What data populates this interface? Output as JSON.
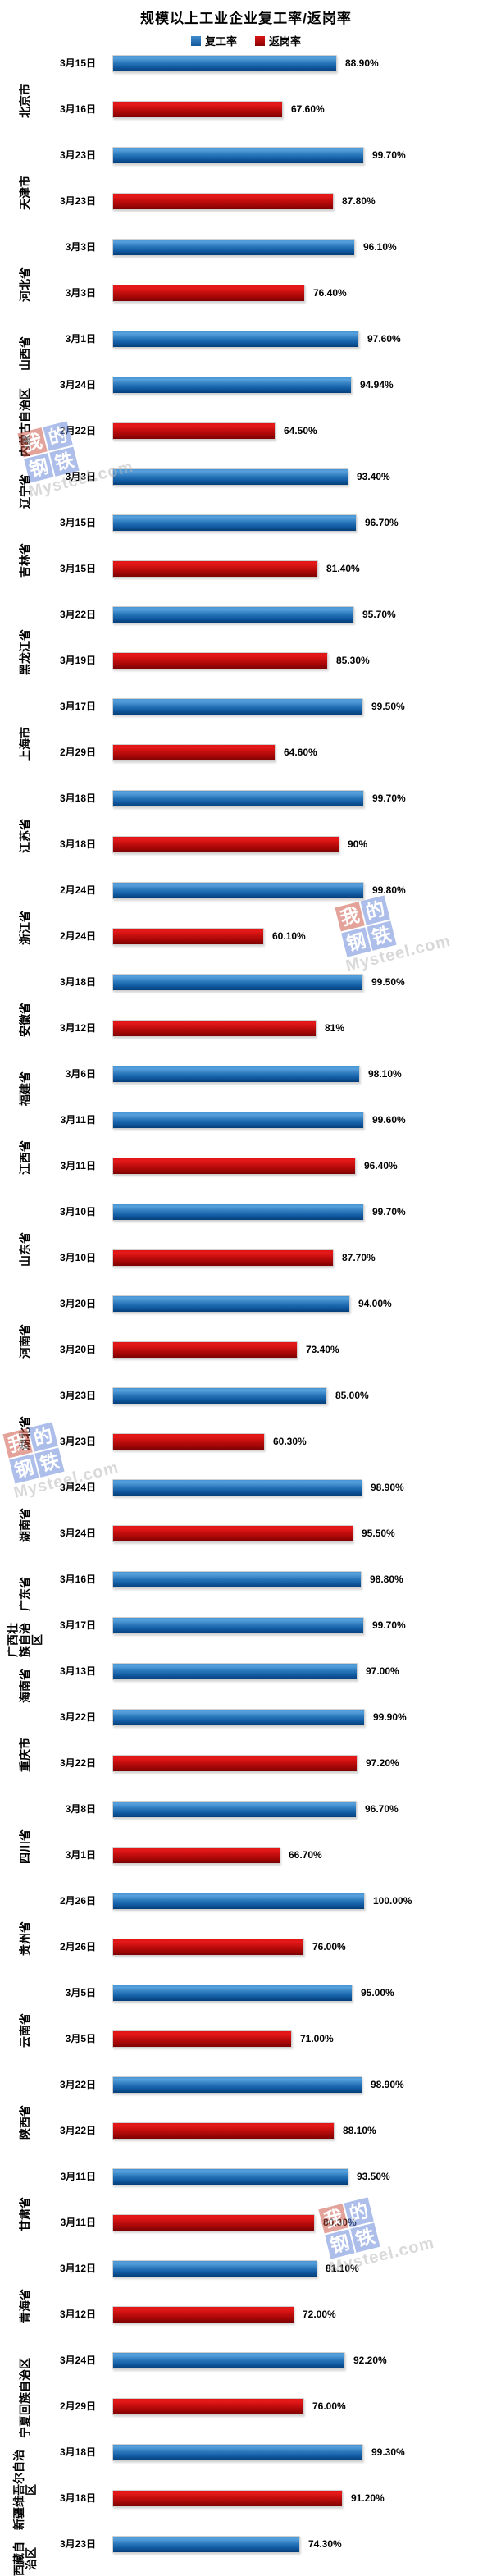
{
  "title": "规模以上工业企业复工率/返岗率",
  "legend": [
    {
      "label": "复工率",
      "color": "#1f6fb5"
    },
    {
      "label": "返岗率",
      "color": "#c00000"
    }
  ],
  "watermark": {
    "squares": [
      "我",
      "的",
      "钢",
      "铁"
    ],
    "text": "Mysteel.com"
  },
  "chart_data": {
    "type": "bar",
    "orientation": "horizontal",
    "unit": "%",
    "xlim": [
      0,
      100
    ],
    "series_names": [
      "复工率",
      "返岗率"
    ],
    "legend_position": "top-center",
    "grid": false,
    "groups": [
      {
        "province": "北京市",
        "bars": [
          {
            "series": "复工率",
            "date": "3月15日",
            "value": 88.9,
            "label": "88.90%"
          },
          {
            "series": "返岗率",
            "date": "3月16日",
            "value": 67.6,
            "label": "67.60%"
          }
        ]
      },
      {
        "province": "天津市",
        "bars": [
          {
            "series": "复工率",
            "date": "3月23日",
            "value": 99.7,
            "label": "99.70%"
          },
          {
            "series": "返岗率",
            "date": "3月23日",
            "value": 87.8,
            "label": "87.80%"
          }
        ]
      },
      {
        "province": "河北省",
        "bars": [
          {
            "series": "复工率",
            "date": "3月3日",
            "value": 96.1,
            "label": "96.10%"
          },
          {
            "series": "返岗率",
            "date": "3月3日",
            "value": 76.4,
            "label": "76.40%"
          }
        ]
      },
      {
        "province": "山西省",
        "bars": [
          {
            "series": "复工率",
            "date": "3月1日",
            "value": 97.6,
            "label": "97.60%"
          }
        ]
      },
      {
        "province": "内蒙古自治区",
        "bars": [
          {
            "series": "复工率",
            "date": "3月24日",
            "value": 94.94,
            "label": "94.94%"
          },
          {
            "series": "返岗率",
            "date": "2月22日",
            "value": 64.5,
            "label": "64.50%"
          }
        ]
      },
      {
        "province": "辽宁省",
        "bars": [
          {
            "series": "复工率",
            "date": "3月3日",
            "value": 93.4,
            "label": "93.40%"
          }
        ]
      },
      {
        "province": "吉林省",
        "bars": [
          {
            "series": "复工率",
            "date": "3月15日",
            "value": 96.7,
            "label": "96.70%"
          },
          {
            "series": "返岗率",
            "date": "3月15日",
            "value": 81.4,
            "label": "81.40%"
          }
        ]
      },
      {
        "province": "黑龙江省",
        "bars": [
          {
            "series": "复工率",
            "date": "3月22日",
            "value": 95.7,
            "label": "95.70%"
          },
          {
            "series": "返岗率",
            "date": "3月19日",
            "value": 85.3,
            "label": "85.30%"
          }
        ]
      },
      {
        "province": "上海市",
        "bars": [
          {
            "series": "复工率",
            "date": "3月17日",
            "value": 99.5,
            "label": "99.50%"
          },
          {
            "series": "返岗率",
            "date": "2月29日",
            "value": 64.6,
            "label": "64.60%"
          }
        ]
      },
      {
        "province": "江苏省",
        "bars": [
          {
            "series": "复工率",
            "date": "3月18日",
            "value": 99.7,
            "label": "99.70%"
          },
          {
            "series": "返岗率",
            "date": "3月18日",
            "value": 90,
            "label": "90%"
          }
        ]
      },
      {
        "province": "浙江省",
        "bars": [
          {
            "series": "复工率",
            "date": "2月24日",
            "value": 99.8,
            "label": "99.80%"
          },
          {
            "series": "返岗率",
            "date": "2月24日",
            "value": 60.1,
            "label": "60.10%"
          }
        ]
      },
      {
        "province": "安徽省",
        "bars": [
          {
            "series": "复工率",
            "date": "3月18日",
            "value": 99.5,
            "label": "99.50%"
          },
          {
            "series": "返岗率",
            "date": "3月12日",
            "value": 81,
            "label": "81%"
          }
        ]
      },
      {
        "province": "福建省",
        "bars": [
          {
            "series": "复工率",
            "date": "3月6日",
            "value": 98.1,
            "label": "98.10%"
          }
        ]
      },
      {
        "province": "江西省",
        "bars": [
          {
            "series": "复工率",
            "date": "3月11日",
            "value": 99.6,
            "label": "99.60%"
          },
          {
            "series": "返岗率",
            "date": "3月11日",
            "value": 96.4,
            "label": "96.40%"
          }
        ]
      },
      {
        "province": "山东省",
        "bars": [
          {
            "series": "复工率",
            "date": "3月10日",
            "value": 99.7,
            "label": "99.70%"
          },
          {
            "series": "返岗率",
            "date": "3月10日",
            "value": 87.7,
            "label": "87.70%"
          }
        ]
      },
      {
        "province": "河南省",
        "bars": [
          {
            "series": "复工率",
            "date": "3月20日",
            "value": 94,
            "label": "94.00%"
          },
          {
            "series": "返岗率",
            "date": "3月20日",
            "value": 73.4,
            "label": "73.40%"
          }
        ]
      },
      {
        "province": "湖北省",
        "bars": [
          {
            "series": "复工率",
            "date": "3月23日",
            "value": 85,
            "label": "85.00%"
          },
          {
            "series": "返岗率",
            "date": "3月23日",
            "value": 60.3,
            "label": "60.30%"
          }
        ]
      },
      {
        "province": "湖南省",
        "bars": [
          {
            "series": "复工率",
            "date": "3月24日",
            "value": 98.9,
            "label": "98.90%"
          },
          {
            "series": "返岗率",
            "date": "3月24日",
            "value": 95.5,
            "label": "95.50%"
          }
        ]
      },
      {
        "province": "广东省",
        "bars": [
          {
            "series": "复工率",
            "date": "3月16日",
            "value": 98.8,
            "label": "98.80%"
          }
        ]
      },
      {
        "province": "广西壮族自治区",
        "bars": [
          {
            "series": "复工率",
            "date": "3月17日",
            "value": 99.7,
            "label": "99.70%"
          }
        ]
      },
      {
        "province": "海南省",
        "bars": [
          {
            "series": "复工率",
            "date": "3月13日",
            "value": 97,
            "label": "97.00%"
          }
        ]
      },
      {
        "province": "重庆市",
        "bars": [
          {
            "series": "复工率",
            "date": "3月22日",
            "value": 99.9,
            "label": "99.90%"
          },
          {
            "series": "返岗率",
            "date": "3月22日",
            "value": 97.2,
            "label": "97.20%"
          }
        ]
      },
      {
        "province": "四川省",
        "bars": [
          {
            "series": "复工率",
            "date": "3月8日",
            "value": 96.7,
            "label": "96.70%"
          },
          {
            "series": "返岗率",
            "date": "3月1日",
            "value": 66.7,
            "label": "66.70%"
          }
        ]
      },
      {
        "province": "贵州省",
        "bars": [
          {
            "series": "复工率",
            "date": "2月26日",
            "value": 100,
            "label": "100.00%"
          },
          {
            "series": "返岗率",
            "date": "2月26日",
            "value": 76,
            "label": "76.00%"
          }
        ]
      },
      {
        "province": "云南省",
        "bars": [
          {
            "series": "复工率",
            "date": "3月5日",
            "value": 95,
            "label": "95.00%"
          },
          {
            "series": "返岗率",
            "date": "3月5日",
            "value": 71,
            "label": "71.00%"
          }
        ]
      },
      {
        "province": "陕西省",
        "bars": [
          {
            "series": "复工率",
            "date": "3月22日",
            "value": 98.9,
            "label": "98.90%"
          },
          {
            "series": "返岗率",
            "date": "3月22日",
            "value": 88.1,
            "label": "88.10%"
          }
        ]
      },
      {
        "province": "甘肃省",
        "bars": [
          {
            "series": "复工率",
            "date": "3月11日",
            "value": 93.5,
            "label": "93.50%"
          },
          {
            "series": "返岗率",
            "date": "3月11日",
            "value": 80.3,
            "label": "80.30%"
          }
        ]
      },
      {
        "province": "青海省",
        "bars": [
          {
            "series": "复工率",
            "date": "3月12日",
            "value": 81.1,
            "label": "81.10%"
          },
          {
            "series": "返岗率",
            "date": "3月12日",
            "value": 72,
            "label": "72.00%"
          }
        ]
      },
      {
        "province": "宁夏回族自治区",
        "bars": [
          {
            "series": "复工率",
            "date": "3月24日",
            "value": 92.2,
            "label": "92.20%"
          },
          {
            "series": "返岗率",
            "date": "2月29日",
            "value": 76,
            "label": "76.00%"
          }
        ]
      },
      {
        "province": "新疆维吾尔自治区",
        "bars": [
          {
            "series": "复工率",
            "date": "3月18日",
            "value": 99.3,
            "label": "99.30%"
          },
          {
            "series": "返岗率",
            "date": "3月18日",
            "value": 91.2,
            "label": "91.20%"
          }
        ]
      },
      {
        "province": "西藏自治区",
        "bars": [
          {
            "series": "复工率",
            "date": "3月23日",
            "value": 74.3,
            "label": "74.30%"
          }
        ]
      }
    ]
  }
}
